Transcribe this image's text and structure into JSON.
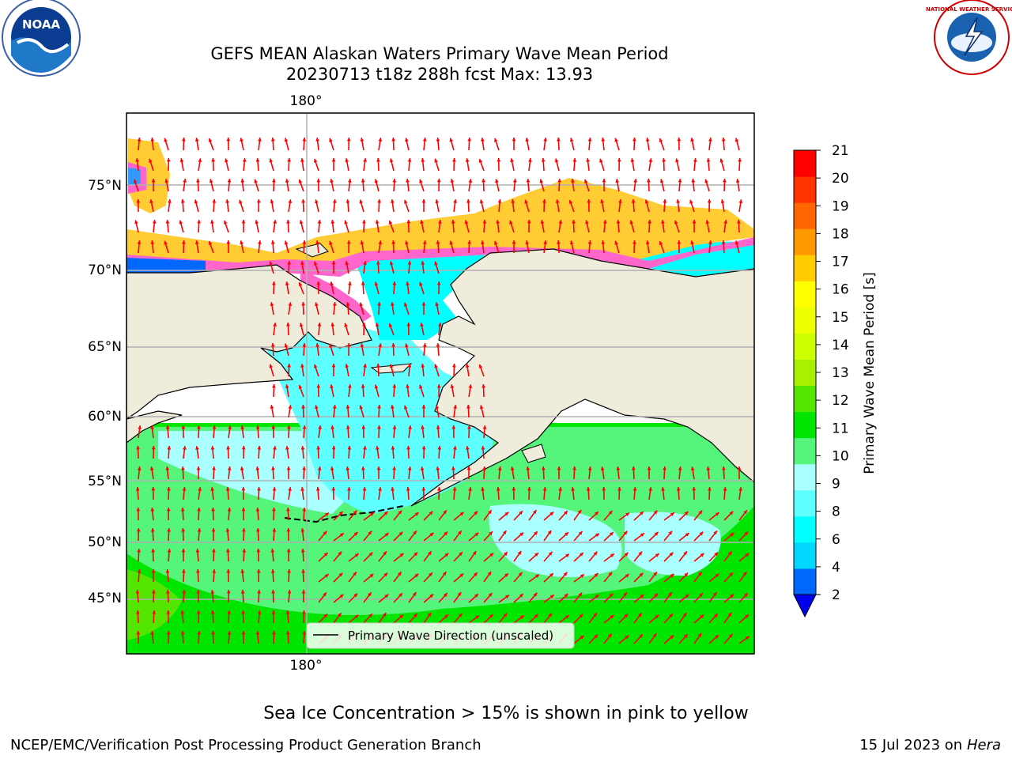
{
  "header": {
    "title_line1": "GEFS MEAN Alaskan Waters Primary Wave Mean Period",
    "title_line2": "20230713 t18z 288h fcst   Max: 13.93"
  },
  "logos": {
    "left": {
      "name": "noaa-logo",
      "text": "NOAA"
    },
    "right": {
      "name": "nws-logo",
      "text": "NATIONAL WEATHER SERVICE"
    }
  },
  "map": {
    "lon_top_label": "180°",
    "lon_bottom_label": "180°",
    "lat_labels": [
      "75°N",
      "70°N",
      "65°N",
      "60°N",
      "55°N",
      "50°N",
      "45°N"
    ],
    "legend_label": "Primary Wave Direction (unscaled)",
    "colors": {
      "land": "#efecdc",
      "coast": "#000000",
      "grid": "#b0b0b0",
      "arrow": "#ff0000"
    }
  },
  "colorbar": {
    "label": "Primary Wave Mean Period [s]",
    "ticks": [
      "2",
      "4",
      "6",
      "8",
      "9",
      "10",
      "11",
      "12",
      "13",
      "14",
      "15",
      "16",
      "17",
      "18",
      "19",
      "20",
      "21"
    ],
    "colors": [
      "#0068ff",
      "#00d8ff",
      "#00ffff",
      "#5effff",
      "#aaffff",
      "#55f57c",
      "#00e600",
      "#54e600",
      "#a8f000",
      "#ccff00",
      "#eeff00",
      "#ffff00",
      "#ffcc00",
      "#ff9900",
      "#ff6600",
      "#ff3300",
      "#ff0000"
    ],
    "extend_color": "#0000ee"
  },
  "footer": {
    "note": "Sea Ice Concentration > 15% is shown in pink to yellow",
    "credit": "NCEP/EMC/Verification Post Processing Product Generation Branch",
    "date": "15 Jul 2023 on",
    "machine": "Hera"
  }
}
